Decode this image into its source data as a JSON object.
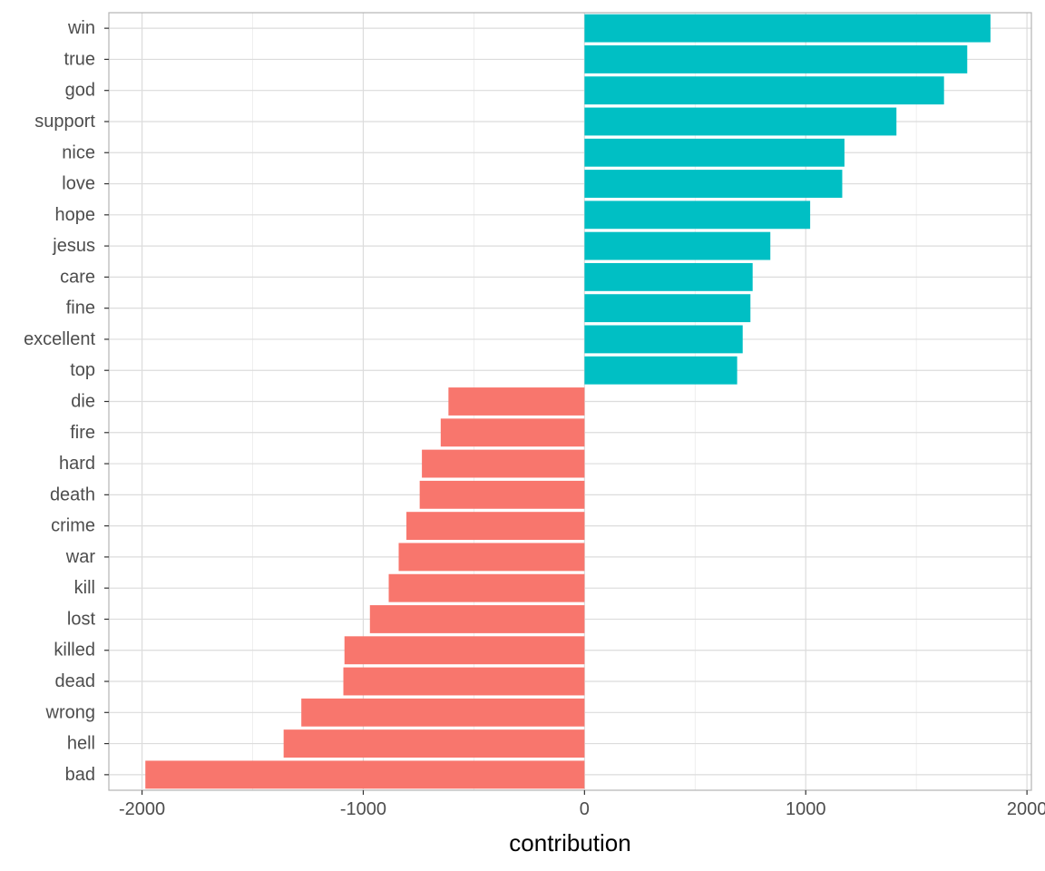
{
  "chart_data": {
    "type": "bar",
    "orientation": "horizontal",
    "xlabel": "contribution",
    "ylabel": "",
    "xlim": [
      -2150,
      2020
    ],
    "x_ticks": [
      -2000,
      -1000,
      0,
      1000,
      2000
    ],
    "x_tick_labels": [
      "-2000",
      "-1000",
      "0",
      "1000",
      "2000"
    ],
    "grid": true,
    "legend": "none",
    "colors": {
      "positive": "#00BFC4",
      "negative": "#F8766D"
    },
    "categories": [
      "win",
      "true",
      "god",
      "support",
      "nice",
      "love",
      "hope",
      "jesus",
      "care",
      "fine",
      "excellent",
      "top",
      "die",
      "fire",
      "hard",
      "death",
      "crime",
      "war",
      "kill",
      "lost",
      "killed",
      "dead",
      "wrong",
      "hell",
      "bad"
    ],
    "values": [
      1835,
      1730,
      1625,
      1410,
      1175,
      1165,
      1020,
      840,
      760,
      750,
      715,
      690,
      -615,
      -650,
      -735,
      -745,
      -805,
      -840,
      -885,
      -970,
      -1085,
      -1090,
      -1280,
      -1360,
      -1985
    ]
  }
}
